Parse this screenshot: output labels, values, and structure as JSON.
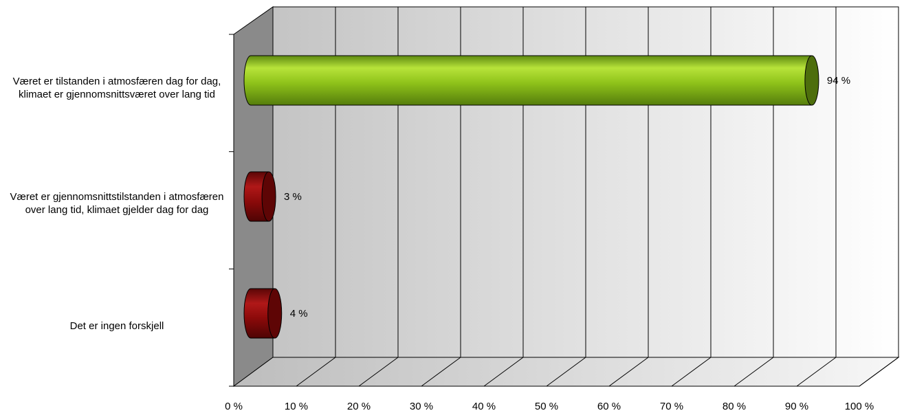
{
  "chart_data": {
    "type": "bar",
    "orientation": "horizontal",
    "style": "3d-cylinder",
    "categories": [
      "Været er tilstanden i atmosfæren dag for dag, klimaet er gjennomsnittsværet over lang tid",
      "Været er gjennomsnittstilstanden i atmosfæren over lang tid, klimaet gjelder dag for dag",
      "Det er ingen forskjell"
    ],
    "values": [
      94,
      3,
      4
    ],
    "value_labels": [
      "94 %",
      "3 %",
      "4 %"
    ],
    "bar_colors": [
      "#8fc31a",
      "#8b0a0a",
      "#8b0a0a"
    ],
    "xlim": [
      0,
      100
    ],
    "x_ticks": [
      "0 %",
      "10 %",
      "20 %",
      "30 %",
      "40 %",
      "50 %",
      "60 %",
      "70 %",
      "80 %",
      "90 %",
      "100 %"
    ],
    "grid": true,
    "title": "",
    "xlabel": "",
    "ylabel": ""
  }
}
